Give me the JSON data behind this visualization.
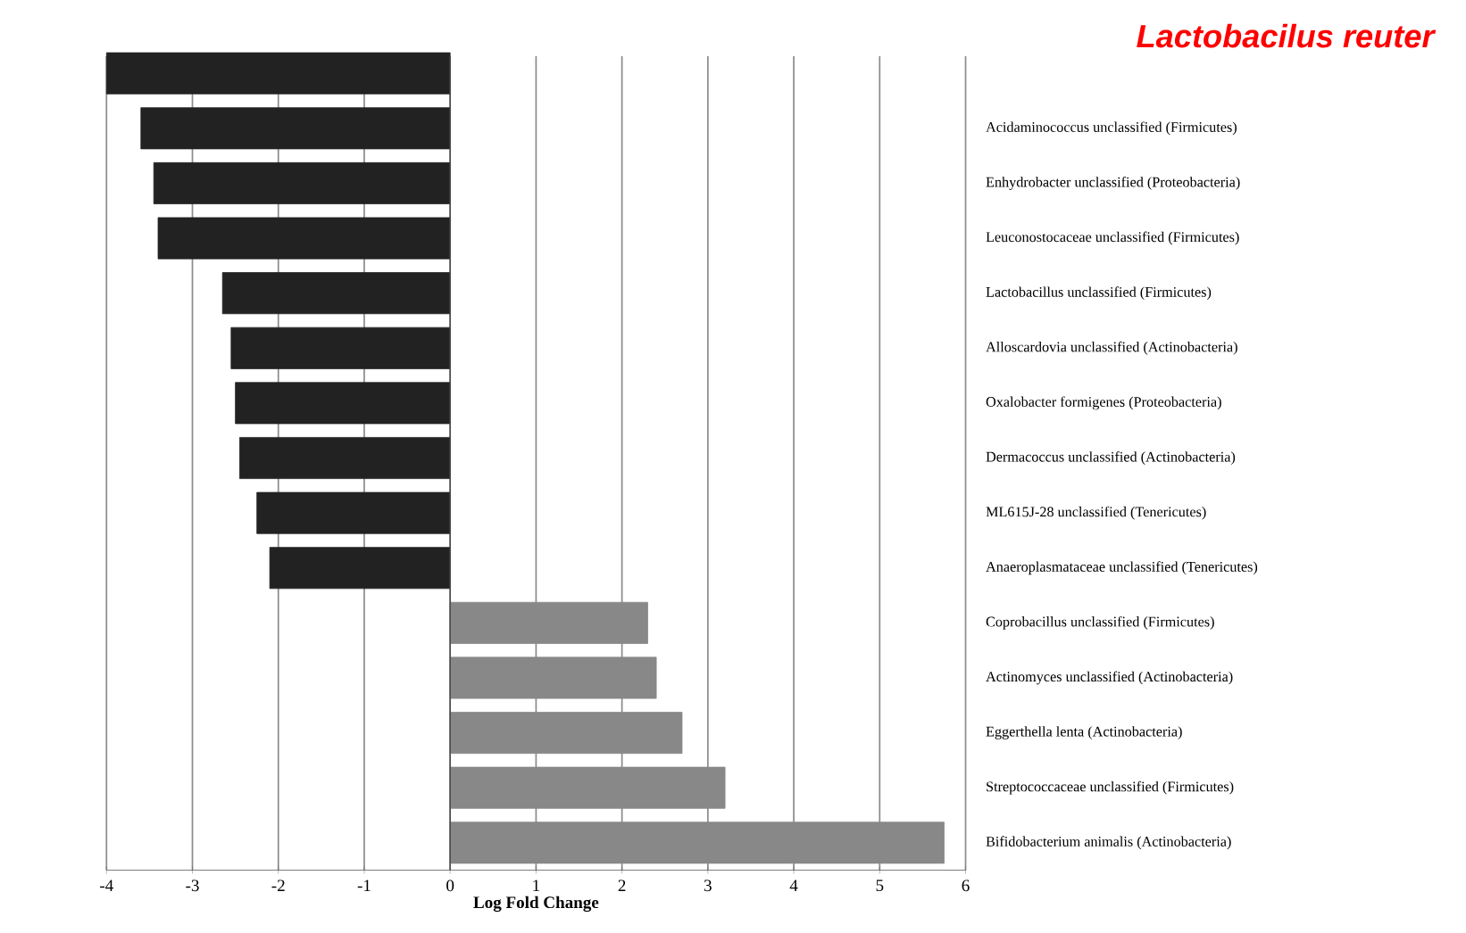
{
  "chart_data": {
    "type": "bar",
    "orientation": "horizontal",
    "title": "Lactobacilus reuter",
    "xlabel": "Log Fold Change",
    "categories": [
      null,
      "Acidaminococcus unclassified (Firmicutes)",
      "Enhydrobacter unclassified (Proteobacteria)",
      "Leuconostocaceae unclassified (Firmicutes)",
      "Lactobacillus unclassified (Firmicutes)",
      "Alloscardovia unclassified (Actinobacteria)",
      "Oxalobacter formigenes (Proteobacteria)",
      "Dermacoccus unclassified (Actinobacteria)",
      "ML615J-28 unclassified (Tenericutes)",
      "Anaeroplasmataceae unclassified (Tenericutes)",
      "Coprobacillus unclassified (Firmicutes)",
      "Actinomyces unclassified (Actinobacteria)",
      "Eggerthella lenta (Actinobacteria)",
      "Streptococcaceae unclassified (Firmicutes)",
      "Bifidobacterium animalis (Actinobacteria)"
    ],
    "values": [
      -4.0,
      -3.6,
      -3.45,
      -3.4,
      -2.65,
      -2.55,
      -2.5,
      -2.45,
      -2.25,
      -2.1,
      2.3,
      2.4,
      2.7,
      3.2,
      5.75
    ],
    "colors": [
      "#222222",
      "#222222",
      "#222222",
      "#222222",
      "#222222",
      "#222222",
      "#222222",
      "#222222",
      "#222222",
      "#222222",
      "#888888",
      "#888888",
      "#888888",
      "#888888",
      "#888888"
    ],
    "xlim": [
      -4,
      6
    ],
    "xticks": [
      -4,
      -3,
      -2,
      -1,
      0,
      1,
      2,
      3,
      4,
      5,
      6
    ],
    "grid": "x"
  }
}
